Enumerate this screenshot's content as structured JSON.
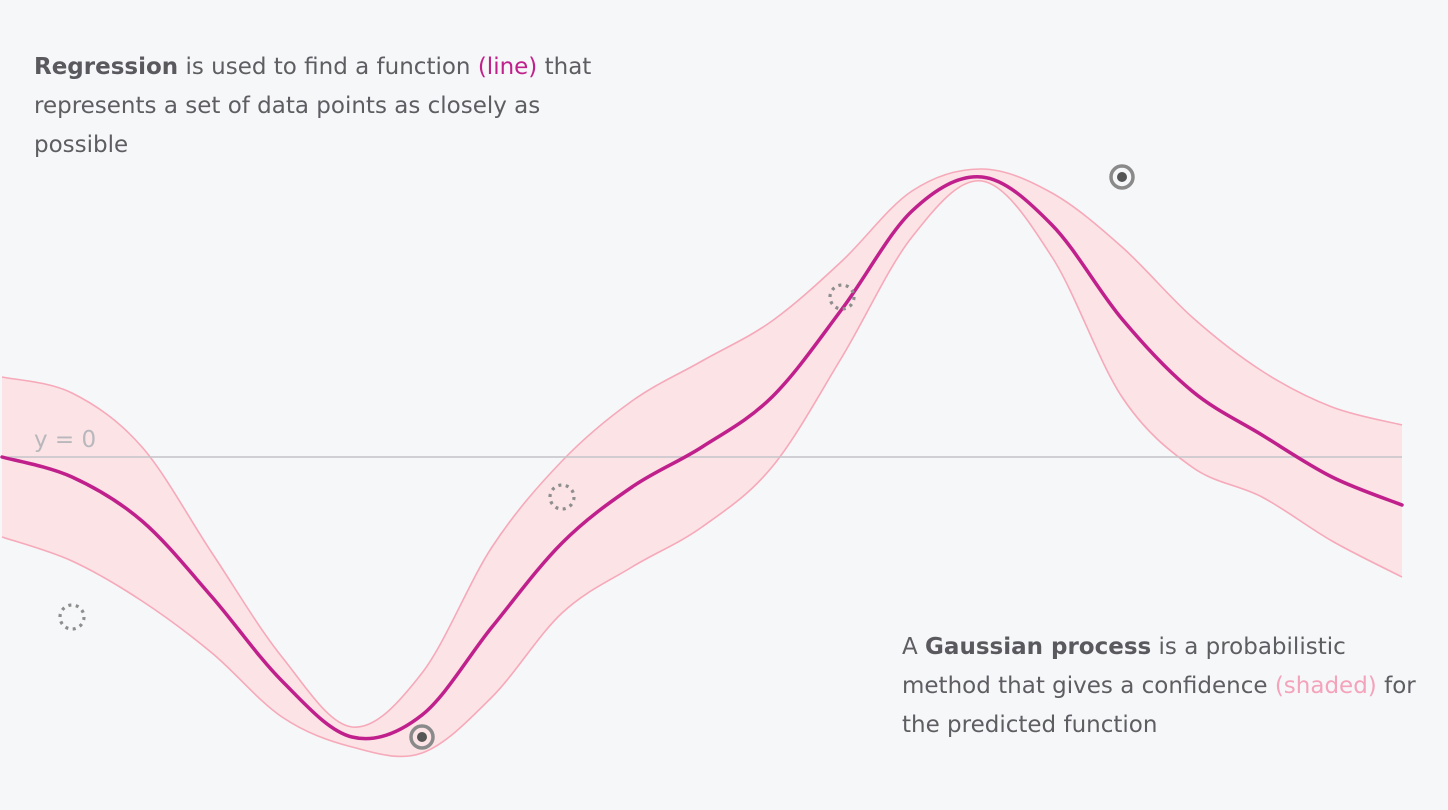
{
  "regression_caption": {
    "bold": "Regression",
    "before_highlight": " is used to find a function ",
    "highlight": "(line)",
    "after_highlight": " that represents a set of data points as closely as possible"
  },
  "gp_caption": {
    "prefix": "A ",
    "bold": "Gaussian process",
    "before_highlight": " is a probabilistic method that gives a confidence ",
    "highlight": "(shaded)",
    "after_highlight": " for the predicted function"
  },
  "axis_label": "y = 0",
  "colors": {
    "background": "#f6f7f9",
    "mean_line": "#c0208b",
    "band_fill": "#fbe3e6",
    "band_edge": "#f6a9b9",
    "axis": "#c4c4c8",
    "observed_point": "#555555",
    "candidate_point": "#8e8e8e"
  },
  "chart_data": {
    "type": "line",
    "ylim": [
      -1.8,
      1.8
    ],
    "xlim": [
      0,
      1
    ],
    "zero_line": true,
    "series": [
      {
        "role": "mean",
        "x": [
          0.0,
          0.05,
          0.1,
          0.15,
          0.2,
          0.25,
          0.3,
          0.35,
          0.4,
          0.45,
          0.5,
          0.55,
          0.6,
          0.65,
          0.7,
          0.75,
          0.8,
          0.85,
          0.9,
          0.95,
          1.0
        ],
        "y": [
          0.0,
          -0.1,
          -0.32,
          -0.7,
          -1.12,
          -1.4,
          -1.29,
          -0.85,
          -0.43,
          -0.15,
          0.05,
          0.3,
          0.74,
          1.23,
          1.4,
          1.16,
          0.69,
          0.33,
          0.11,
          -0.1,
          -0.24
        ]
      },
      {
        "role": "upper",
        "x": [
          0.0,
          0.05,
          0.1,
          0.15,
          0.2,
          0.25,
          0.3,
          0.35,
          0.4,
          0.45,
          0.5,
          0.55,
          0.6,
          0.65,
          0.7,
          0.75,
          0.8,
          0.85,
          0.9,
          0.95,
          1.0
        ],
        "y": [
          0.4,
          0.32,
          0.05,
          -0.48,
          -1.0,
          -1.35,
          -1.08,
          -0.45,
          -0.02,
          0.28,
          0.48,
          0.68,
          0.98,
          1.33,
          1.44,
          1.32,
          1.05,
          0.7,
          0.43,
          0.25,
          0.16
        ]
      },
      {
        "role": "lower",
        "x": [
          0.0,
          0.05,
          0.1,
          0.15,
          0.2,
          0.25,
          0.3,
          0.35,
          0.4,
          0.45,
          0.5,
          0.55,
          0.6,
          0.65,
          0.7,
          0.75,
          0.8,
          0.85,
          0.9,
          0.95,
          1.0
        ],
        "y": [
          -0.4,
          -0.52,
          -0.72,
          -0.98,
          -1.3,
          -1.45,
          -1.48,
          -1.2,
          -0.78,
          -0.55,
          -0.35,
          -0.05,
          0.5,
          1.1,
          1.38,
          1.0,
          0.3,
          -0.05,
          -0.2,
          -0.42,
          -0.6
        ]
      }
    ],
    "points": [
      {
        "x": 0.3,
        "y": -1.4,
        "kind": "observed"
      },
      {
        "x": 0.8,
        "y": 1.4,
        "kind": "observed"
      },
      {
        "x": 0.05,
        "y": -0.8,
        "kind": "candidate"
      },
      {
        "x": 0.4,
        "y": -0.2,
        "kind": "candidate"
      },
      {
        "x": 0.6,
        "y": 0.8,
        "kind": "candidate"
      }
    ]
  }
}
